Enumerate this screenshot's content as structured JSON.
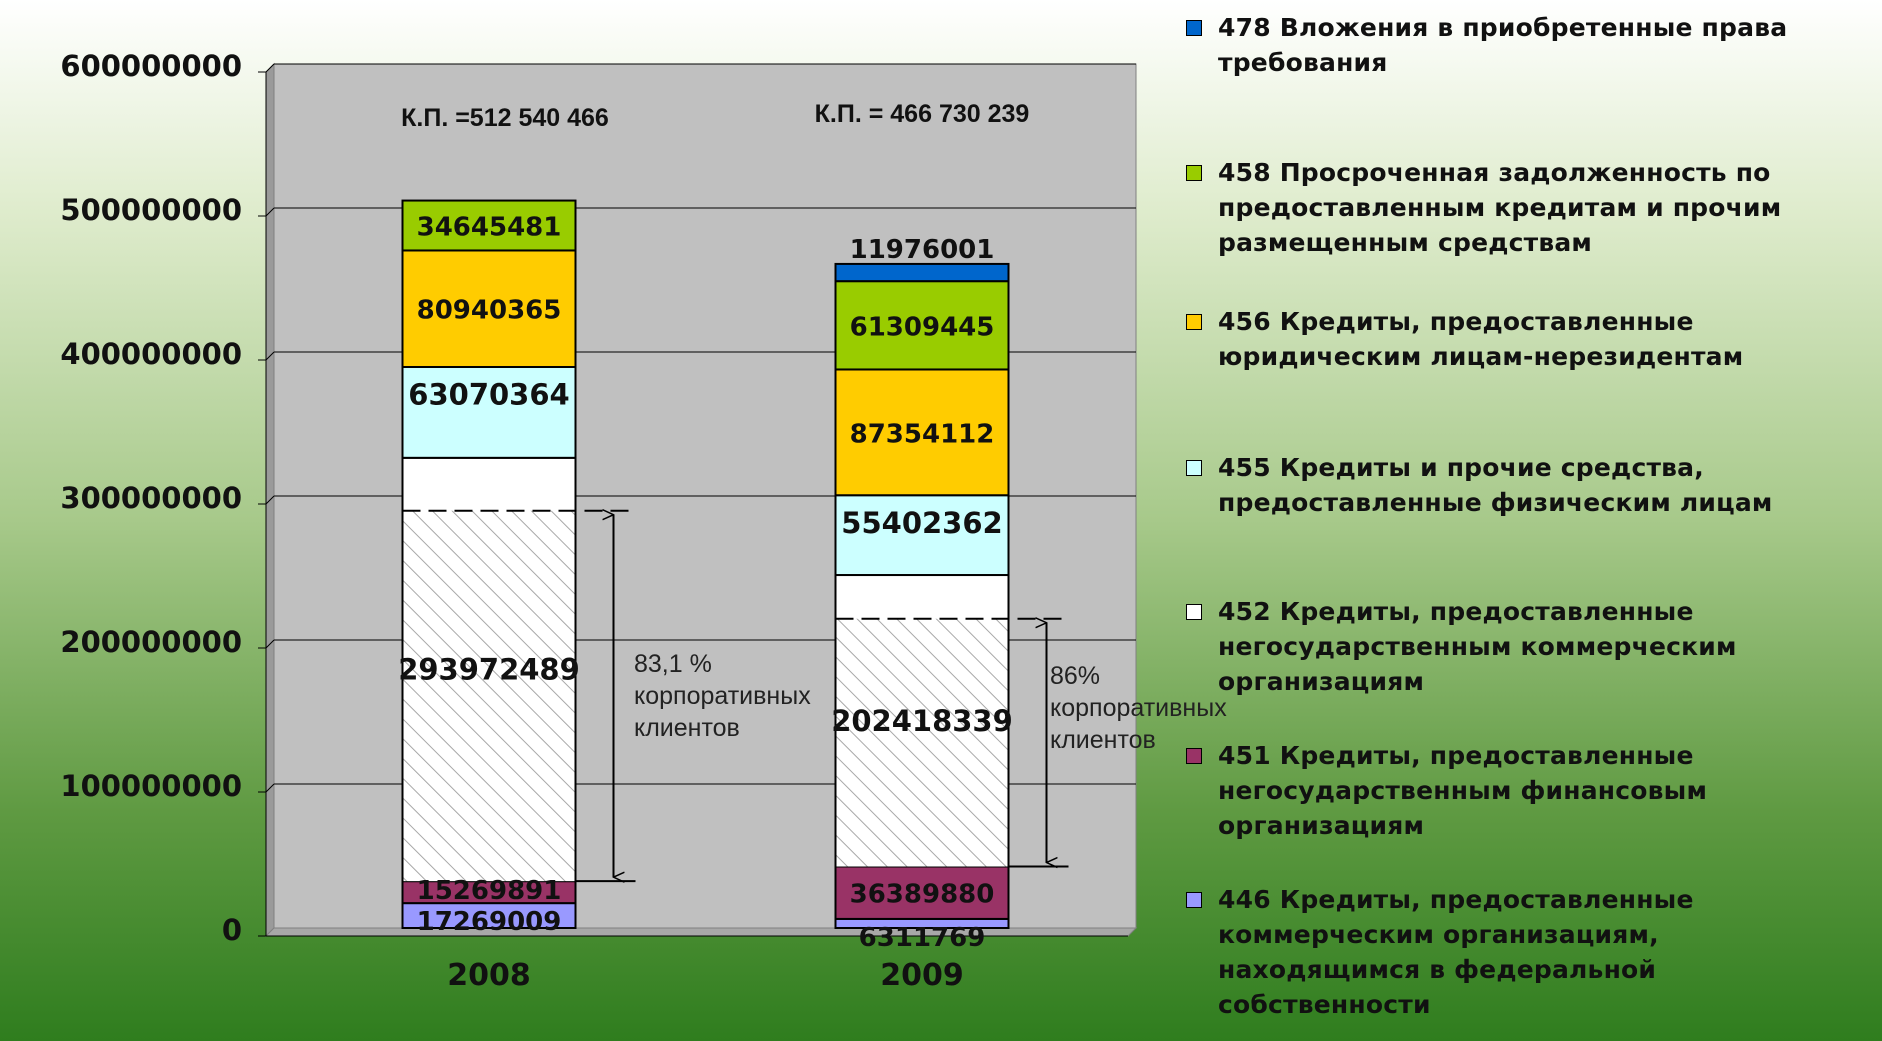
{
  "chart_data": {
    "type": "bar",
    "stacked": true,
    "categories": [
      "2008",
      "2009"
    ],
    "ylim": [
      0,
      600000000
    ],
    "yticks": [
      "0",
      "100000000",
      "200000000",
      "300000000",
      "400000000",
      "500000000",
      "600000000"
    ],
    "grid": true,
    "legend_position": "right",
    "series": [
      {
        "name": "446 Кредиты, предоставленные коммерческим организациям, находящимся в федеральной собственности",
        "color": "#9999ff",
        "values": [
          17269009,
          6311769
        ],
        "labels": [
          "17269009",
          "6311769"
        ]
      },
      {
        "name": "451 Кредиты, предоставленные негосударственным финансовым организациям",
        "color": "#993366",
        "values": [
          15269891,
          36389880
        ],
        "labels": [
          "15269891",
          "36389880"
        ]
      },
      {
        "name": "452 Кредиты, предоставленные негосударственным коммерческим организациям",
        "color": "#ffffff",
        "values": [
          293972489,
          202418339
        ],
        "labels": [
          "293972489",
          "202418339"
        ]
      },
      {
        "name": "455 Кредиты и прочие средства, предоставленные физическим лицам",
        "color": "#ccffff",
        "values": [
          63070364,
          55402362
        ],
        "labels": [
          "63070364",
          "55402362"
        ]
      },
      {
        "name": "456 Кредиты, предоставленные юридическим лицам-нерезидентам",
        "color": "#ffcc00",
        "values": [
          80940365,
          87354112
        ],
        "labels": [
          "80940365",
          "87354112"
        ]
      },
      {
        "name": "458 Просроченная задолженность по предоставленным кредитам и прочим размещенным средствам",
        "color": "#99cc00",
        "values": [
          34645481,
          61309445
        ],
        "labels": [
          "34645481",
          "61309445"
        ]
      },
      {
        "name": "478 Вложения в приобретенные права требования",
        "color": "#0066cc",
        "values": [
          0,
          11976001
        ],
        "labels": [
          "",
          "11976001"
        ]
      }
    ],
    "totals": [
      "К.П. =512 540 466",
      "К.П. = 466 730 239"
    ],
    "annotations": [
      {
        "lines": [
          "83,1 %",
          "корпоративных",
          "клиентов"
        ]
      },
      {
        "lines": [
          "86%",
          "корпоративных",
          "клиентов"
        ]
      }
    ]
  },
  "legend_order": [
    6,
    5,
    4,
    3,
    2,
    1,
    0
  ],
  "colors": {
    "plot_background": "#c0c0c0",
    "gridline": "#000000",
    "hatch": "#a0a0a0"
  }
}
